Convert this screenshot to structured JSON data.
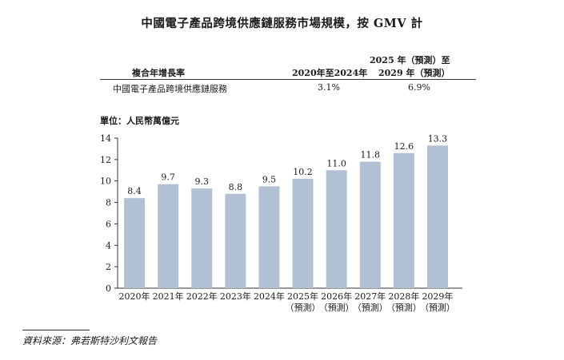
{
  "title": "中國電子產品跨境供應鏈服務市場規模，按 GMV 計",
  "cagr_table": {
    "row_label_header": "複合年增長率",
    "col1_header": "2020年至2024年",
    "col2_header_line1": "2025 年（預測）至",
    "col2_header_line2": "2029 年（預測）",
    "row_label": "中國電子產品跨境供應鏈服務",
    "col1_value": "3.1%",
    "col2_value": "6.9%"
  },
  "unit_label": "單位：人民幣萬億元",
  "source": "資料來源：弗若斯特沙利文報告",
  "chart_data": {
    "type": "bar",
    "title": "中國電子產品跨境供應鏈服務市場規模，按 GMV 計",
    "ylabel": "人民幣萬億元",
    "xlabel": "",
    "ylim": [
      0,
      14
    ],
    "yticks": [
      0,
      2,
      4,
      6,
      8,
      10,
      12,
      14
    ],
    "grid": false,
    "bar_color": "#b1c1d3",
    "categories": [
      "2020年",
      "2021年",
      "2022年",
      "2023年",
      "2024年",
      "2025年",
      "2026年",
      "2027年",
      "2028年",
      "2029年"
    ],
    "category_sublabels": [
      "",
      "",
      "",
      "",
      "",
      "（預測）",
      "（預測）",
      "（預測）",
      "（預測）",
      "（預測）"
    ],
    "values": [
      8.4,
      9.7,
      9.3,
      8.8,
      9.5,
      10.2,
      11.0,
      11.8,
      12.6,
      13.3
    ],
    "value_labels": [
      "8.4",
      "9.7",
      "9.3",
      "8.8",
      "9.5",
      "10.2",
      "11.0",
      "11.8",
      "12.6",
      "13.3"
    ]
  }
}
